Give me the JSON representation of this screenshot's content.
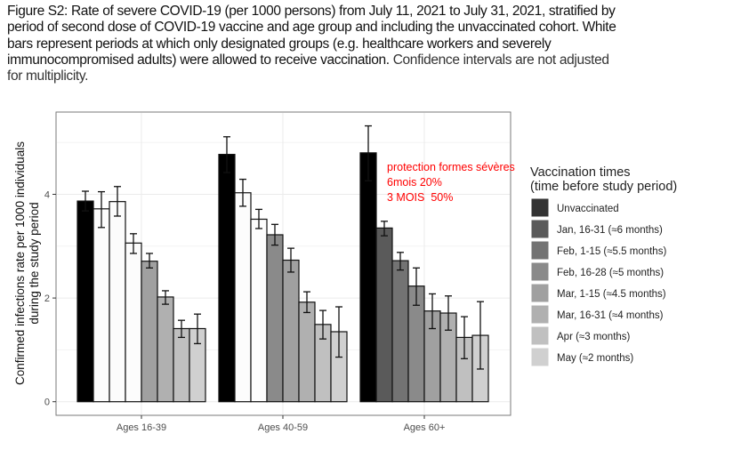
{
  "caption": {
    "line1": "Figure S2: Rate of severe COVID-19 (per 1000 persons) from July 11, 2021 to July 31, 2021, stratified by",
    "line2": "period of second dose of COVID-19 vaccine and age group and including the unvaccinated cohort. White",
    "line3": "bars represent periods at which only designated groups (e.g. healthcare workers and severely",
    "line4a": "immunocompromised adults) were allowed to receive vaccination.",
    "line4b": " Confidence intervals are not adjusted",
    "line5": "for multiplicity."
  },
  "annotation": {
    "line1": "protection formes sévères",
    "line2": "6mois 20%",
    "line3": "3 MOIS  50%",
    "color": "#ff0000"
  },
  "chart_data": {
    "type": "bar",
    "ylabel_line1": "Confirmed infections rate per 1000 individuals",
    "ylabel_line2": "during the study period",
    "xlabel": "",
    "ylim": [
      0,
      5.6
    ],
    "yticks": [
      "0",
      "2",
      "4"
    ],
    "ytick_values": [
      0,
      2,
      4
    ],
    "grid": true,
    "categories": [
      "Ages 16-39",
      "Ages 40-59",
      "Ages 60+"
    ],
    "legend": {
      "title_line1": "Vaccination times",
      "title_line2": "(time before study period)",
      "placement": "right",
      "entries": [
        "Unvaccinated",
        "Jan, 16-31 (≈6 months)",
        "Feb, 1-15 (≈5.5 months)",
        "Feb, 16-28 (≈5 months)",
        "Mar, 1-15 (≈4.5 months)",
        "Mar, 16-31 (≈4 months)",
        "Apr (≈3 months)",
        "May (≈2 months)"
      ],
      "colors": [
        "#333333",
        "#5a5a5a",
        "#737373",
        "#8a8a8a",
        "#a0a0a0",
        "#b0b0b0",
        "#c0c0c0",
        "#d0d0d0"
      ]
    },
    "bar_colors_by_group": [
      [
        "#000000",
        "#fcfcfc",
        "#fcfcfc",
        "#fcfcfc",
        "#a0a0a0",
        "#b0b0b0",
        "#c0c0c0",
        "#d0d0d0"
      ],
      [
        "#000000",
        "#fcfcfc",
        "#fcfcfc",
        "#8a8a8a",
        "#a0a0a0",
        "#b0b0b0",
        "#c0c0c0",
        "#d0d0d0"
      ],
      [
        "#000000",
        "#5a5a5a",
        "#737373",
        "#8a8a8a",
        "#a0a0a0",
        "#b0b0b0",
        "#c0c0c0",
        "#d0d0d0"
      ]
    ],
    "series": [
      {
        "name": "Unvaccinated",
        "values": [
          3.87,
          4.77,
          4.8
        ],
        "lower": [
          3.68,
          4.42,
          4.26
        ],
        "upper": [
          4.06,
          5.11,
          5.32
        ]
      },
      {
        "name": "Jan, 16-31 (≈6 months)",
        "values": [
          3.72,
          4.03,
          3.35
        ],
        "lower": [
          3.36,
          3.77,
          3.2
        ],
        "upper": [
          4.05,
          4.29,
          3.48
        ]
      },
      {
        "name": "Feb, 1-15 (≈5.5 months)",
        "values": [
          3.86,
          3.52,
          2.72
        ],
        "lower": [
          3.58,
          3.34,
          2.54
        ],
        "upper": [
          4.15,
          3.71,
          2.88
        ]
      },
      {
        "name": "Feb, 16-28 (≈5 months)",
        "values": [
          3.06,
          3.22,
          2.23
        ],
        "lower": [
          2.86,
          3.02,
          1.86
        ],
        "upper": [
          3.24,
          3.42,
          2.58
        ]
      },
      {
        "name": "Mar, 1-15 (≈4.5 months)",
        "values": [
          2.71,
          2.73,
          1.75
        ],
        "lower": [
          2.58,
          2.5,
          1.41
        ],
        "upper": [
          2.86,
          2.96,
          2.08
        ]
      },
      {
        "name": "Mar, 16-31 (≈4 months)",
        "values": [
          2.02,
          1.92,
          1.71
        ],
        "lower": [
          1.88,
          1.72,
          1.38
        ],
        "upper": [
          2.14,
          2.12,
          2.04
        ]
      },
      {
        "name": "Apr (≈3 months)",
        "values": [
          1.41,
          1.49,
          1.24
        ],
        "lower": [
          1.24,
          1.21,
          0.83
        ],
        "upper": [
          1.57,
          1.76,
          1.64
        ]
      },
      {
        "name": "May (≈2 months)",
        "values": [
          1.41,
          1.35,
          1.28
        ],
        "lower": [
          1.12,
          0.86,
          0.63
        ],
        "upper": [
          1.69,
          1.83,
          1.93
        ]
      }
    ]
  }
}
